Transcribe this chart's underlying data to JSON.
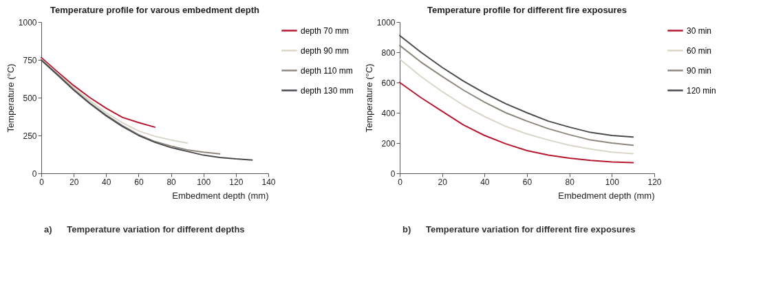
{
  "chart_data": [
    {
      "type": "line",
      "title": "Temperature profile for varous embedment depth",
      "xlabel": "Embedment depth (mm)",
      "ylabel": "Temperature (°C)",
      "annotations": [
        "a)      Temperature variation for different depths"
      ],
      "x": [
        0,
        10,
        20,
        30,
        40,
        50,
        60,
        70,
        80,
        90,
        100,
        110,
        120,
        130
      ],
      "xlim": [
        0,
        140
      ],
      "xticks": [
        0,
        20,
        40,
        60,
        80,
        100,
        120,
        140
      ],
      "ylim": [
        0,
        1000
      ],
      "yticks": [
        0,
        250,
        500,
        750,
        1000
      ],
      "grid": false,
      "legend": "right",
      "marker": "none",
      "line_style": "solid",
      "series": [
        {
          "name": "depth 70 mm",
          "color": "#b5172f",
          "values": [
            765,
            670,
            580,
            500,
            430,
            370,
            335,
            305,
            null,
            null,
            null,
            null,
            null,
            null
          ]
        },
        {
          "name": "depth 90 mm",
          "color": "#d9d6c8",
          "values": [
            755,
            660,
            565,
            480,
            400,
            335,
            280,
            245,
            220,
            200,
            null,
            null,
            null,
            null
          ]
        },
        {
          "name": "depth 110 mm",
          "color": "#8c867c",
          "values": [
            750,
            655,
            555,
            465,
            385,
            315,
            255,
            210,
            180,
            155,
            140,
            128,
            null,
            null
          ]
        },
        {
          "name": "depth 130 mm",
          "color": "#4a4a4f",
          "values": [
            748,
            650,
            550,
            460,
            380,
            310,
            250,
            205,
            170,
            145,
            120,
            105,
            95,
            88
          ]
        }
      ]
    },
    {
      "type": "line",
      "title": "Temperature profile for different fire exposures",
      "xlabel": "Embedment depth (mm)",
      "ylabel": "Temperature (°C)",
      "annotations": [
        "b)      Temperature variation for different fire exposures"
      ],
      "x": [
        0,
        10,
        20,
        30,
        40,
        50,
        60,
        70,
        80,
        90,
        100,
        110
      ],
      "xlim": [
        0,
        120
      ],
      "xticks": [
        0,
        20,
        40,
        60,
        80,
        100,
        120
      ],
      "ylim": [
        0,
        1000
      ],
      "yticks": [
        0,
        200,
        400,
        600,
        800,
        1000
      ],
      "grid": false,
      "legend": "right",
      "marker": "none",
      "line_style": "solid",
      "series": [
        {
          "name": "30 min",
          "color": "#b5172f",
          "values": [
            600,
            500,
            410,
            320,
            250,
            195,
            150,
            120,
            100,
            85,
            75,
            70
          ]
        },
        {
          "name": "60 min",
          "color": "#d9d6c8",
          "values": [
            755,
            640,
            540,
            450,
            375,
            310,
            260,
            220,
            185,
            160,
            140,
            130
          ]
        },
        {
          "name": "90 min",
          "color": "#8c867c",
          "values": [
            845,
            735,
            640,
            550,
            470,
            400,
            345,
            295,
            255,
            220,
            200,
            185
          ]
        },
        {
          "name": "120 min",
          "color": "#4a4a4f",
          "values": [
            910,
            800,
            700,
            610,
            530,
            460,
            400,
            345,
            305,
            270,
            250,
            240
          ]
        }
      ]
    }
  ]
}
